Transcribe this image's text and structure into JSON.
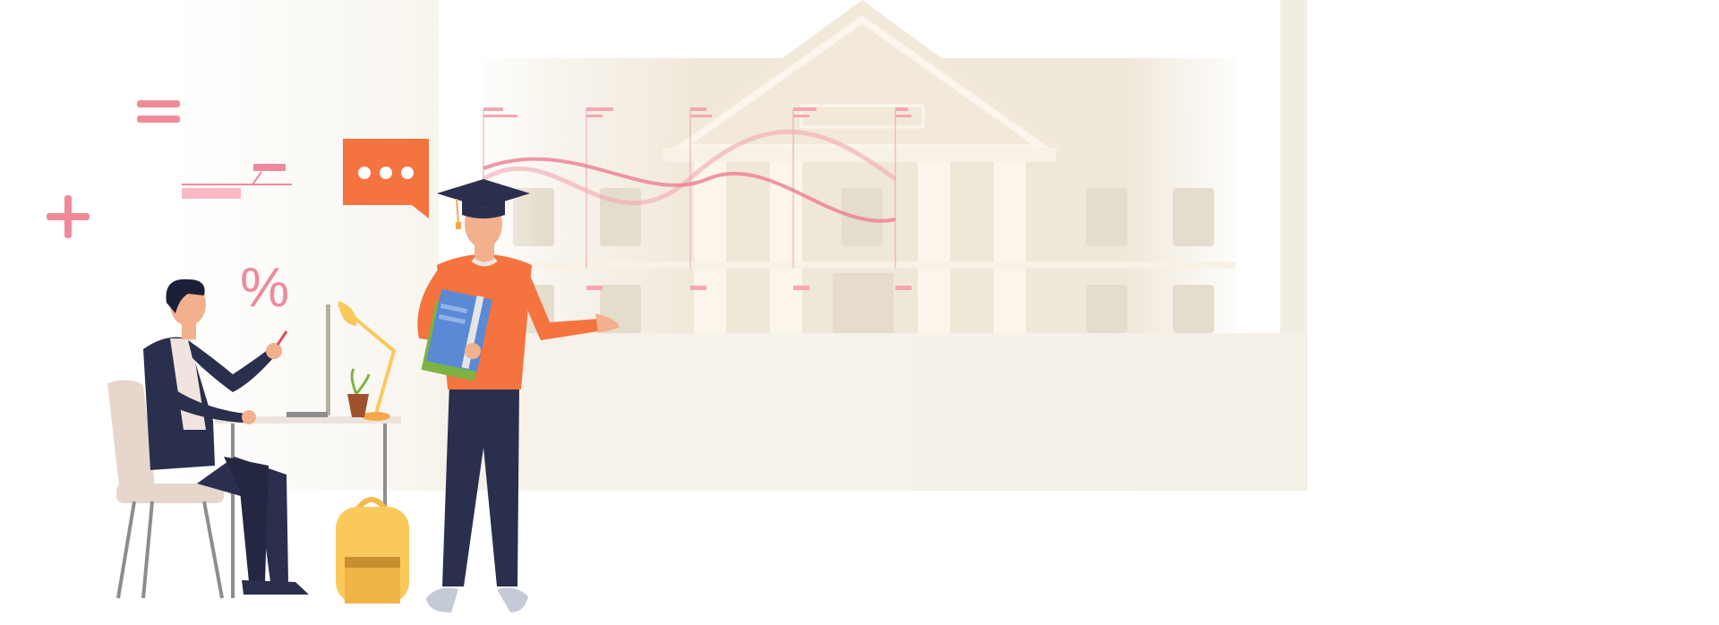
{
  "illustration": {
    "speech_bubble_text": "•••",
    "percent_symbol": "%",
    "plus_symbol": "+",
    "equals_symbol": "="
  },
  "colors": {
    "accent_pink": "#f08a9a",
    "accent_orange": "#f4733f",
    "navy": "#2b2f4e",
    "cream": "#f5f0e6",
    "building": "#ece2d0",
    "backpack": "#f9c95c",
    "book_blue": "#5a8ad6",
    "skin": "#f2b08c"
  },
  "icons": [
    "plus-icon",
    "equals-icon",
    "percent-icon",
    "chat-bubble-icon",
    "graduation-cap-icon",
    "desk-lamp-icon",
    "backpack-icon",
    "plant-icon"
  ]
}
